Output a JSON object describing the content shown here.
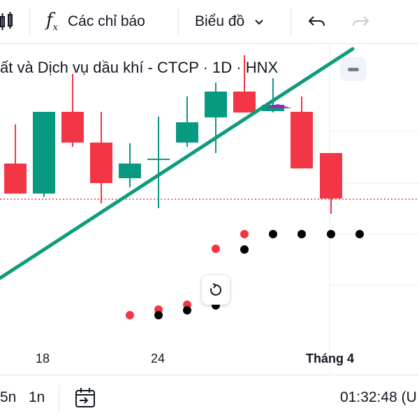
{
  "toolbar": {
    "indicators_label": "Các chỉ báo",
    "chart_type_label": "Biểu đồ",
    "icons": [
      "candles-icon",
      "fx-icon",
      "chevron-down-icon",
      "undo-icon",
      "redo-icon"
    ]
  },
  "legend": {
    "title": "ất và Dịch vụ dầu khí - CTCP · 1D · HNX"
  },
  "chart_data": {
    "type": "candlestick",
    "x_tick_labels": [
      "18",
      "24",
      "Tháng 4"
    ],
    "colors": {
      "up": "#089981",
      "down": "#f23645",
      "trendline": "#0e9c7d",
      "sar_dark": "#000000"
    },
    "note_scale": "price axis not visible; values in screen-relative price units"
  },
  "bottombar": {
    "range_5d": "5n",
    "range_1m": "1n",
    "clock": "01:32:48 (U"
  }
}
